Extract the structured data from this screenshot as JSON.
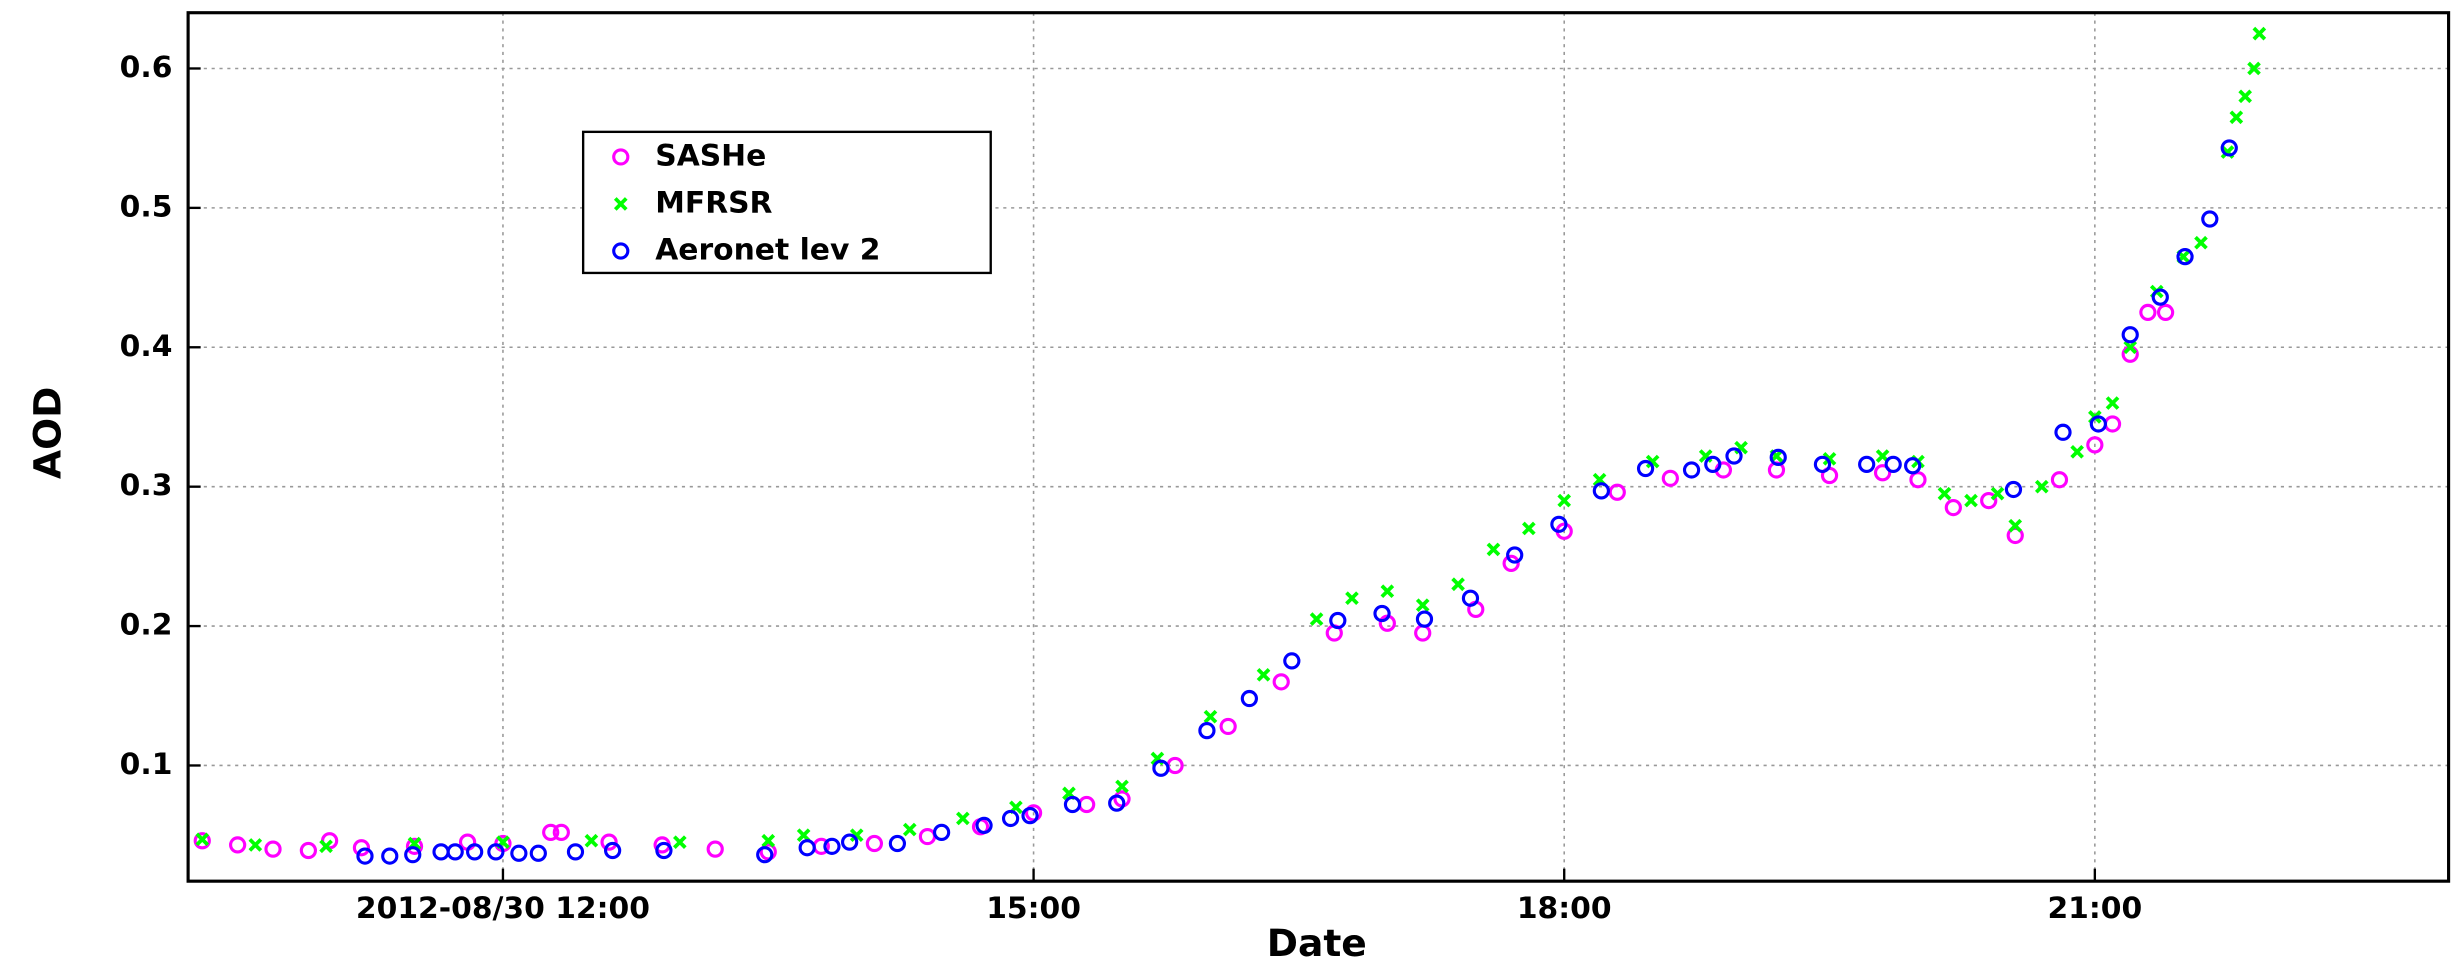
{
  "chart_data": {
    "type": "scatter",
    "x_label": "Date",
    "y_label": "AOD",
    "xlim": [
      10.22,
      23.0
    ],
    "xticks": [
      {
        "value": 12,
        "label": "2012-08/30 12:00"
      },
      {
        "value": 15,
        "label": "15:00"
      },
      {
        "value": 18,
        "label": "18:00"
      },
      {
        "value": 21,
        "label": "21:00"
      }
    ],
    "ylim": [
      0.017,
      0.64
    ],
    "yticks": [
      0.1,
      0.2,
      0.3,
      0.4,
      0.5,
      0.6
    ],
    "grid": true,
    "legend": "upper left",
    "series": [
      {
        "name": "SASHe",
        "color": "#ff00ff",
        "marker": "circle",
        "x": [
          10.3,
          10.5,
          10.7,
          10.9,
          11.02,
          11.2,
          11.5,
          11.8,
          12.0,
          12.27,
          12.33,
          12.6,
          12.9,
          13.2,
          13.5,
          13.8,
          14.1,
          14.4,
          14.7,
          15.0,
          15.3,
          15.5,
          15.8,
          16.1,
          16.4,
          16.7,
          17.0,
          17.2,
          17.5,
          17.7,
          18.0,
          18.3,
          18.6,
          18.9,
          19.2,
          19.5,
          19.8,
          20.0,
          20.2,
          20.4,
          20.55,
          20.8,
          21.0,
          21.1,
          21.2,
          21.3,
          21.4
        ],
        "values": [
          0.046,
          0.043,
          0.04,
          0.039,
          0.046,
          0.041,
          0.042,
          0.045,
          0.044,
          0.052,
          0.052,
          0.045,
          0.043,
          0.04,
          0.038,
          0.042,
          0.044,
          0.049,
          0.056,
          0.066,
          0.072,
          0.076,
          0.1,
          0.128,
          0.16,
          0.195,
          0.202,
          0.195,
          0.212,
          0.245,
          0.268,
          0.296,
          0.306,
          0.312,
          0.312,
          0.308,
          0.31,
          0.305,
          0.285,
          0.29,
          0.265,
          0.305,
          0.33,
          0.345,
          0.395,
          0.425,
          0.425
        ]
      },
      {
        "name": "MFRSR",
        "color": "#00ff00",
        "marker": "x",
        "x": [
          10.3,
          10.6,
          11.0,
          11.5,
          12.0,
          12.5,
          13.0,
          13.5,
          13.7,
          14.0,
          14.3,
          14.6,
          14.9,
          15.2,
          15.5,
          15.7,
          16.0,
          16.3,
          16.6,
          16.8,
          17.0,
          17.2,
          17.4,
          17.6,
          17.8,
          18.0,
          18.2,
          18.5,
          18.8,
          19.0,
          19.2,
          19.5,
          19.8,
          20.0,
          20.15,
          20.3,
          20.45,
          20.55,
          20.7,
          20.9,
          21.0,
          21.1,
          21.2,
          21.35,
          21.5,
          21.6,
          21.75,
          21.8,
          21.85,
          21.9,
          21.93
        ],
        "values": [
          0.047,
          0.043,
          0.042,
          0.044,
          0.045,
          0.046,
          0.045,
          0.046,
          0.05,
          0.05,
          0.054,
          0.062,
          0.07,
          0.08,
          0.085,
          0.105,
          0.135,
          0.165,
          0.205,
          0.22,
          0.225,
          0.215,
          0.23,
          0.255,
          0.27,
          0.29,
          0.305,
          0.318,
          0.322,
          0.328,
          0.322,
          0.32,
          0.322,
          0.318,
          0.295,
          0.29,
          0.295,
          0.272,
          0.3,
          0.325,
          0.35,
          0.36,
          0.4,
          0.44,
          0.465,
          0.475,
          0.54,
          0.565,
          0.58,
          0.6,
          0.625
        ]
      },
      {
        "name": "Aeronet lev 2",
        "color": "#0000ff",
        "marker": "circle",
        "x": [
          11.22,
          11.36,
          11.49,
          11.65,
          11.73,
          11.84,
          11.96,
          12.09,
          12.2,
          12.41,
          12.62,
          12.91,
          13.48,
          13.72,
          13.86,
          13.96,
          14.23,
          14.48,
          14.72,
          14.87,
          14.98,
          15.22,
          15.47,
          15.72,
          15.98,
          16.22,
          16.46,
          16.72,
          16.97,
          17.21,
          17.47,
          17.72,
          17.97,
          18.21,
          18.46,
          18.72,
          18.84,
          18.96,
          19.21,
          19.46,
          19.71,
          19.86,
          19.97,
          20.54,
          20.82,
          21.02,
          21.2,
          21.37,
          21.51,
          21.65,
          21.76
        ],
        "values": [
          0.035,
          0.035,
          0.036,
          0.038,
          0.038,
          0.038,
          0.038,
          0.037,
          0.037,
          0.038,
          0.039,
          0.039,
          0.036,
          0.041,
          0.042,
          0.045,
          0.044,
          0.052,
          0.057,
          0.062,
          0.064,
          0.072,
          0.073,
          0.098,
          0.125,
          0.148,
          0.175,
          0.204,
          0.209,
          0.205,
          0.22,
          0.251,
          0.273,
          0.297,
          0.313,
          0.312,
          0.316,
          0.322,
          0.321,
          0.316,
          0.316,
          0.316,
          0.315,
          0.298,
          0.339,
          0.345,
          0.409,
          0.436,
          0.465,
          0.492,
          0.543
        ]
      }
    ]
  }
}
